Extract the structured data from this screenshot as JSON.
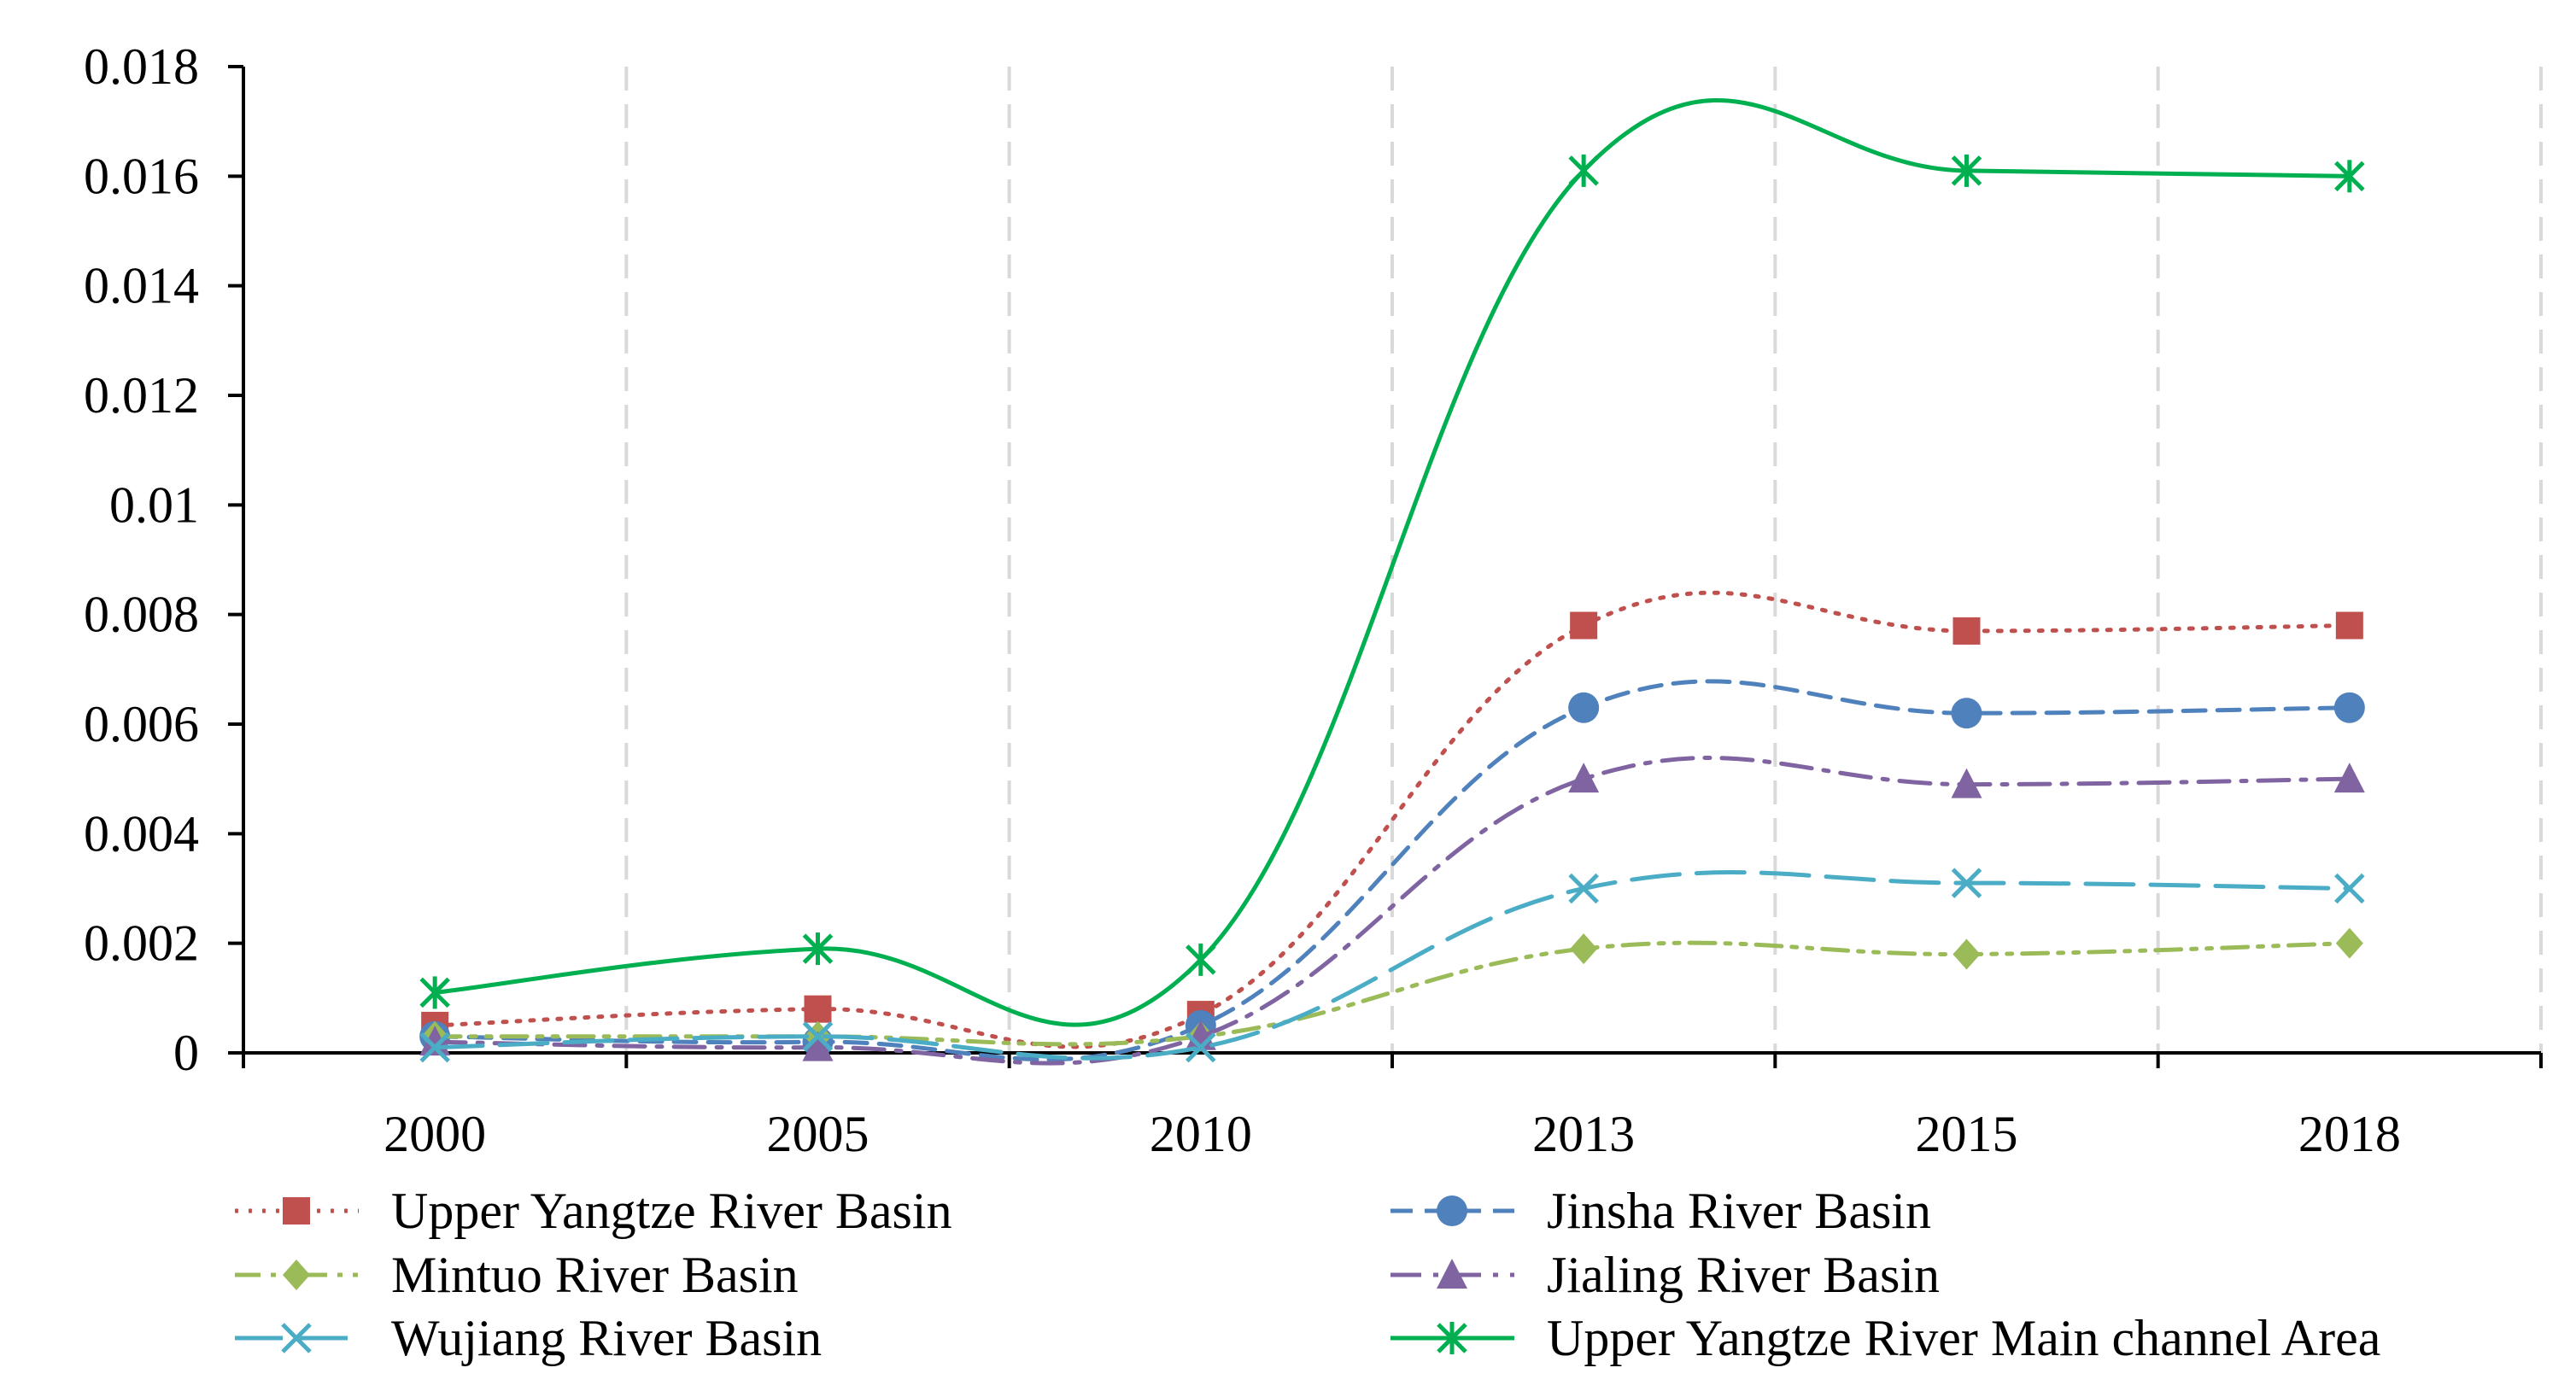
{
  "chart_data": {
    "type": "line",
    "categories": [
      "2000",
      "2005",
      "2010",
      "2013",
      "2015",
      "2018"
    ],
    "y_tick_labels": [
      "0",
      "0.002",
      "0.004",
      "0.006",
      "0.008",
      "0.01",
      "0.012",
      "0.014",
      "0.016",
      "0.018"
    ],
    "ylim": [
      0,
      0.018
    ],
    "grid": "vertical dashed",
    "legend_position": "bottom",
    "series": [
      {
        "name": "Upper Yangtze River Basin",
        "values": [
          0.0005,
          0.0008,
          0.0007,
          0.0078,
          0.0077,
          0.0078
        ],
        "color": "#c0504d",
        "dash": "dotted",
        "marker": "square"
      },
      {
        "name": "Jinsha River Basin",
        "values": [
          0.0003,
          0.0002,
          0.0005,
          0.0063,
          0.0062,
          0.0063
        ],
        "color": "#4f81bd",
        "dash": "dashed",
        "marker": "circle"
      },
      {
        "name": "Mintuo River Basin",
        "values": [
          0.0003,
          0.0003,
          0.0003,
          0.0019,
          0.0018,
          0.002
        ],
        "color": "#9bbb59",
        "dash": "dash-dot-dot",
        "marker": "diamond"
      },
      {
        "name": "Jialing River Basin",
        "values": [
          0.0002,
          0.0001,
          0.0003,
          0.005,
          0.0049,
          0.005
        ],
        "color": "#8064a2",
        "dash": "dash-dot",
        "marker": "triangle"
      },
      {
        "name": "Wujiang River Basin",
        "values": [
          0.0001,
          0.0003,
          0.0001,
          0.003,
          0.0031,
          0.003
        ],
        "color": "#4bacc6",
        "dash": "long-dash",
        "marker": "x"
      },
      {
        "name": "Upper Yangtze River Main channel Area",
        "values": [
          0.0011,
          0.0019,
          0.0017,
          0.0161,
          0.0161,
          0.016
        ],
        "color": "#00b050",
        "dash": "solid",
        "marker": "star"
      }
    ]
  }
}
